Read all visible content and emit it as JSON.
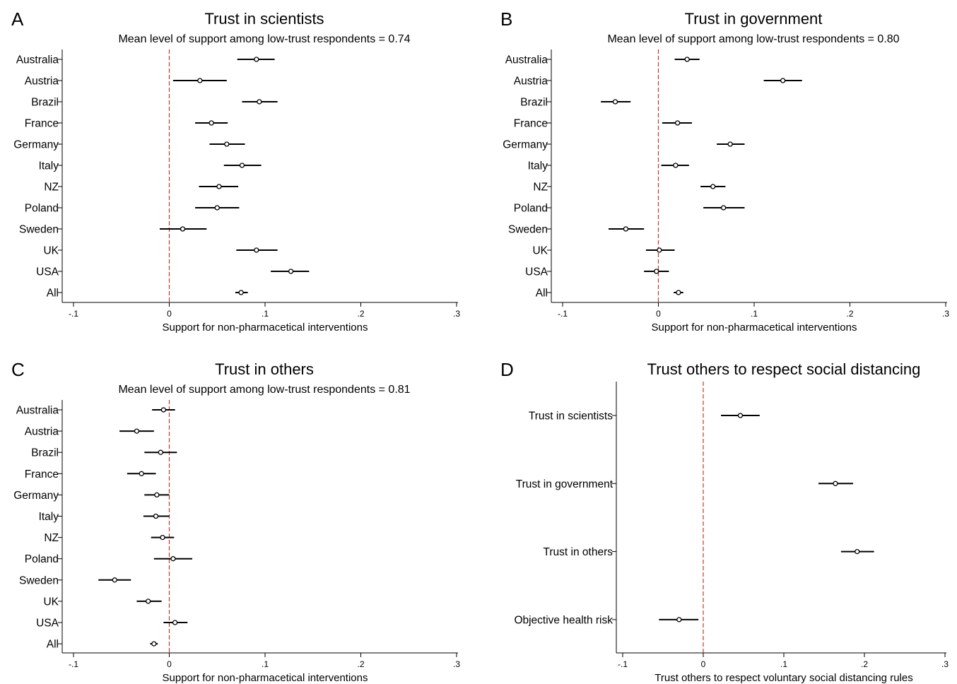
{
  "chart_data": [
    {
      "id": "A",
      "type": "scatter",
      "panel_label": "A",
      "title": "Trust in scientists",
      "subtitle": "Mean level of support among low-trust respondents = 0.74",
      "xlabel": "Support for non-pharmacetical interventions",
      "xlim": [
        -0.1,
        0.3
      ],
      "xticks": [
        -0.1,
        0,
        0.1,
        0.2,
        0.3
      ],
      "xtick_labels": [
        "-.1",
        "0",
        ".1",
        ".2",
        ".3"
      ],
      "reference_line": {
        "x": 0,
        "color": "#c0392b",
        "style": "dashed"
      },
      "categories": [
        "Australia",
        "Austria",
        "Brazil",
        "France",
        "Germany",
        "Italy",
        "NZ",
        "Poland",
        "Sweden",
        "UK",
        "USA",
        "All"
      ],
      "estimates": [
        0.091,
        0.032,
        0.094,
        0.044,
        0.06,
        0.076,
        0.052,
        0.05,
        0.014,
        0.091,
        0.127,
        0.075
      ],
      "ci_low": [
        0.071,
        0.004,
        0.076,
        0.027,
        0.042,
        0.057,
        0.031,
        0.027,
        -0.01,
        0.07,
        0.106,
        0.069
      ],
      "ci_high": [
        0.11,
        0.06,
        0.113,
        0.061,
        0.079,
        0.096,
        0.072,
        0.073,
        0.039,
        0.113,
        0.146,
        0.082
      ]
    },
    {
      "id": "B",
      "type": "scatter",
      "panel_label": "B",
      "title": "Trust in government",
      "subtitle": "Mean level of support among low-trust respondents = 0.80",
      "xlabel": "Support for non-pharmacetical interventions",
      "xlim": [
        -0.1,
        0.3
      ],
      "xticks": [
        -0.1,
        0,
        0.1,
        0.2,
        0.3
      ],
      "xtick_labels": [
        "-.1",
        "0",
        ".1",
        ".2",
        ".3"
      ],
      "reference_line": {
        "x": 0,
        "color": "#c0392b",
        "style": "dashed"
      },
      "categories": [
        "Australia",
        "Austria",
        "Brazil",
        "France",
        "Germany",
        "Italy",
        "NZ",
        "Poland",
        "Sweden",
        "UK",
        "USA",
        "All"
      ],
      "estimates": [
        0.03,
        0.13,
        -0.045,
        0.02,
        0.075,
        0.018,
        0.057,
        0.068,
        -0.034,
        0.001,
        -0.002,
        0.021
      ],
      "ci_low": [
        0.017,
        0.11,
        -0.06,
        0.004,
        0.061,
        0.003,
        0.044,
        0.047,
        -0.052,
        -0.013,
        -0.015,
        0.016
      ],
      "ci_high": [
        0.043,
        0.15,
        -0.029,
        0.035,
        0.09,
        0.032,
        0.07,
        0.09,
        -0.015,
        0.017,
        0.011,
        0.026
      ]
    },
    {
      "id": "C",
      "type": "scatter",
      "panel_label": "C",
      "title": "Trust in others",
      "subtitle": "Mean level of support among low-trust respondents = 0.81",
      "xlabel": "Support for non-pharmacetical interventions",
      "xlim": [
        -0.1,
        0.3
      ],
      "xticks": [
        -0.1,
        0,
        0.1,
        0.2,
        0.3
      ],
      "xtick_labels": [
        "-.1",
        "0",
        ".1",
        ".2",
        ".3"
      ],
      "reference_line": {
        "x": 0,
        "color": "#c0392b",
        "style": "dashed"
      },
      "categories": [
        "Australia",
        "Austria",
        "Brazil",
        "France",
        "Germany",
        "Italy",
        "NZ",
        "Poland",
        "Sweden",
        "UK",
        "USA",
        "All"
      ],
      "estimates": [
        -0.006,
        -0.034,
        -0.009,
        -0.029,
        -0.013,
        -0.014,
        -0.007,
        0.004,
        -0.057,
        -0.022,
        0.006,
        -0.016
      ],
      "ci_low": [
        -0.018,
        -0.052,
        -0.026,
        -0.044,
        -0.026,
        -0.027,
        -0.019,
        -0.016,
        -0.074,
        -0.034,
        -0.006,
        -0.02
      ],
      "ci_high": [
        0.006,
        -0.016,
        0.008,
        -0.014,
        0.0,
        0.0,
        0.005,
        0.024,
        -0.04,
        -0.008,
        0.019,
        -0.012
      ]
    },
    {
      "id": "D",
      "type": "scatter",
      "panel_label": "D",
      "title": "Trust others to respect social distancing",
      "subtitle": "",
      "xlabel": "Trust others to respect voluntary social distancing rules",
      "xlim": [
        -0.1,
        0.3
      ],
      "xticks": [
        -0.1,
        0,
        0.1,
        0.2,
        0.3
      ],
      "xtick_labels": [
        "-.1",
        "0",
        ".1",
        ".2",
        ".3"
      ],
      "reference_line": {
        "x": 0,
        "color": "#c0392b",
        "style": "dashed"
      },
      "categories": [
        "Trust in scientists",
        "Trust in government",
        "Trust in others",
        "Objective health risk"
      ],
      "estimates": [
        0.046,
        0.164,
        0.191,
        -0.03
      ],
      "ci_low": [
        0.022,
        0.143,
        0.171,
        -0.055
      ],
      "ci_high": [
        0.07,
        0.186,
        0.212,
        -0.006
      ]
    }
  ]
}
